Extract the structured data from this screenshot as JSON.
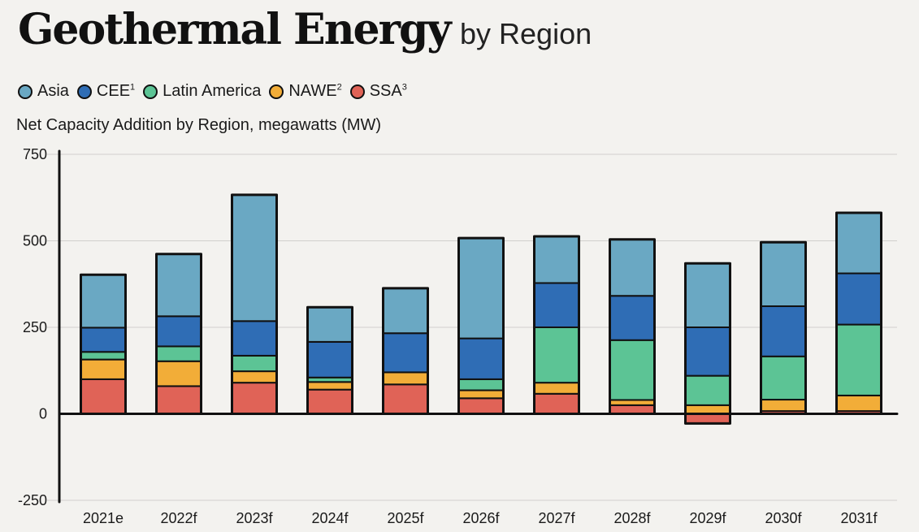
{
  "title": "Geothermal Energy",
  "title_suffix": "by Region",
  "colors": {
    "Asia": "#6aa8c3",
    "CEE": "#2f6db5",
    "Latin America": "#5cc495",
    "NAWE": "#f2ad38",
    "SSA": "#e06357"
  },
  "legend": [
    {
      "label": "Asia",
      "sup": ""
    },
    {
      "label": "CEE",
      "sup": "1"
    },
    {
      "label": "Latin America",
      "sup": ""
    },
    {
      "label": "NAWE",
      "sup": "2"
    },
    {
      "label": "SSA",
      "sup": "3"
    }
  ],
  "chart_data": {
    "type": "bar",
    "stacked": true,
    "title": "Geothermal Energy by Region",
    "subtitle": "Net Capacity Addition by Region, megawatts (MW)",
    "xlabel": "",
    "ylabel": "Net Capacity Addition by Region, megawatts (MW)",
    "ylim": [
      -250,
      750
    ],
    "yticks": [
      750,
      500,
      250,
      0,
      -250
    ],
    "grid": true,
    "legend_position": "top-left",
    "categories": [
      "2021e",
      "2022f",
      "2023f",
      "2024f",
      "2025f",
      "2026f",
      "2027f",
      "2028f",
      "2029f",
      "2030f",
      "2031f"
    ],
    "series": [
      {
        "name": "SSA",
        "values": [
          100,
          80,
          90,
          70,
          85,
          45,
          58,
          25,
          -28,
          8,
          8
        ]
      },
      {
        "name": "NAWE",
        "values": [
          57,
          72,
          33,
          22,
          35,
          23,
          32,
          15,
          25,
          33,
          45
        ]
      },
      {
        "name": "Latin America",
        "values": [
          22,
          43,
          45,
          13,
          0,
          32,
          160,
          173,
          85,
          125,
          205
        ]
      },
      {
        "name": "CEE",
        "values": [
          70,
          87,
          100,
          103,
          113,
          118,
          128,
          128,
          140,
          145,
          148
        ]
      },
      {
        "name": "Asia",
        "values": [
          153,
          180,
          365,
          100,
          130,
          290,
          135,
          163,
          185,
          185,
          175
        ]
      }
    ]
  }
}
